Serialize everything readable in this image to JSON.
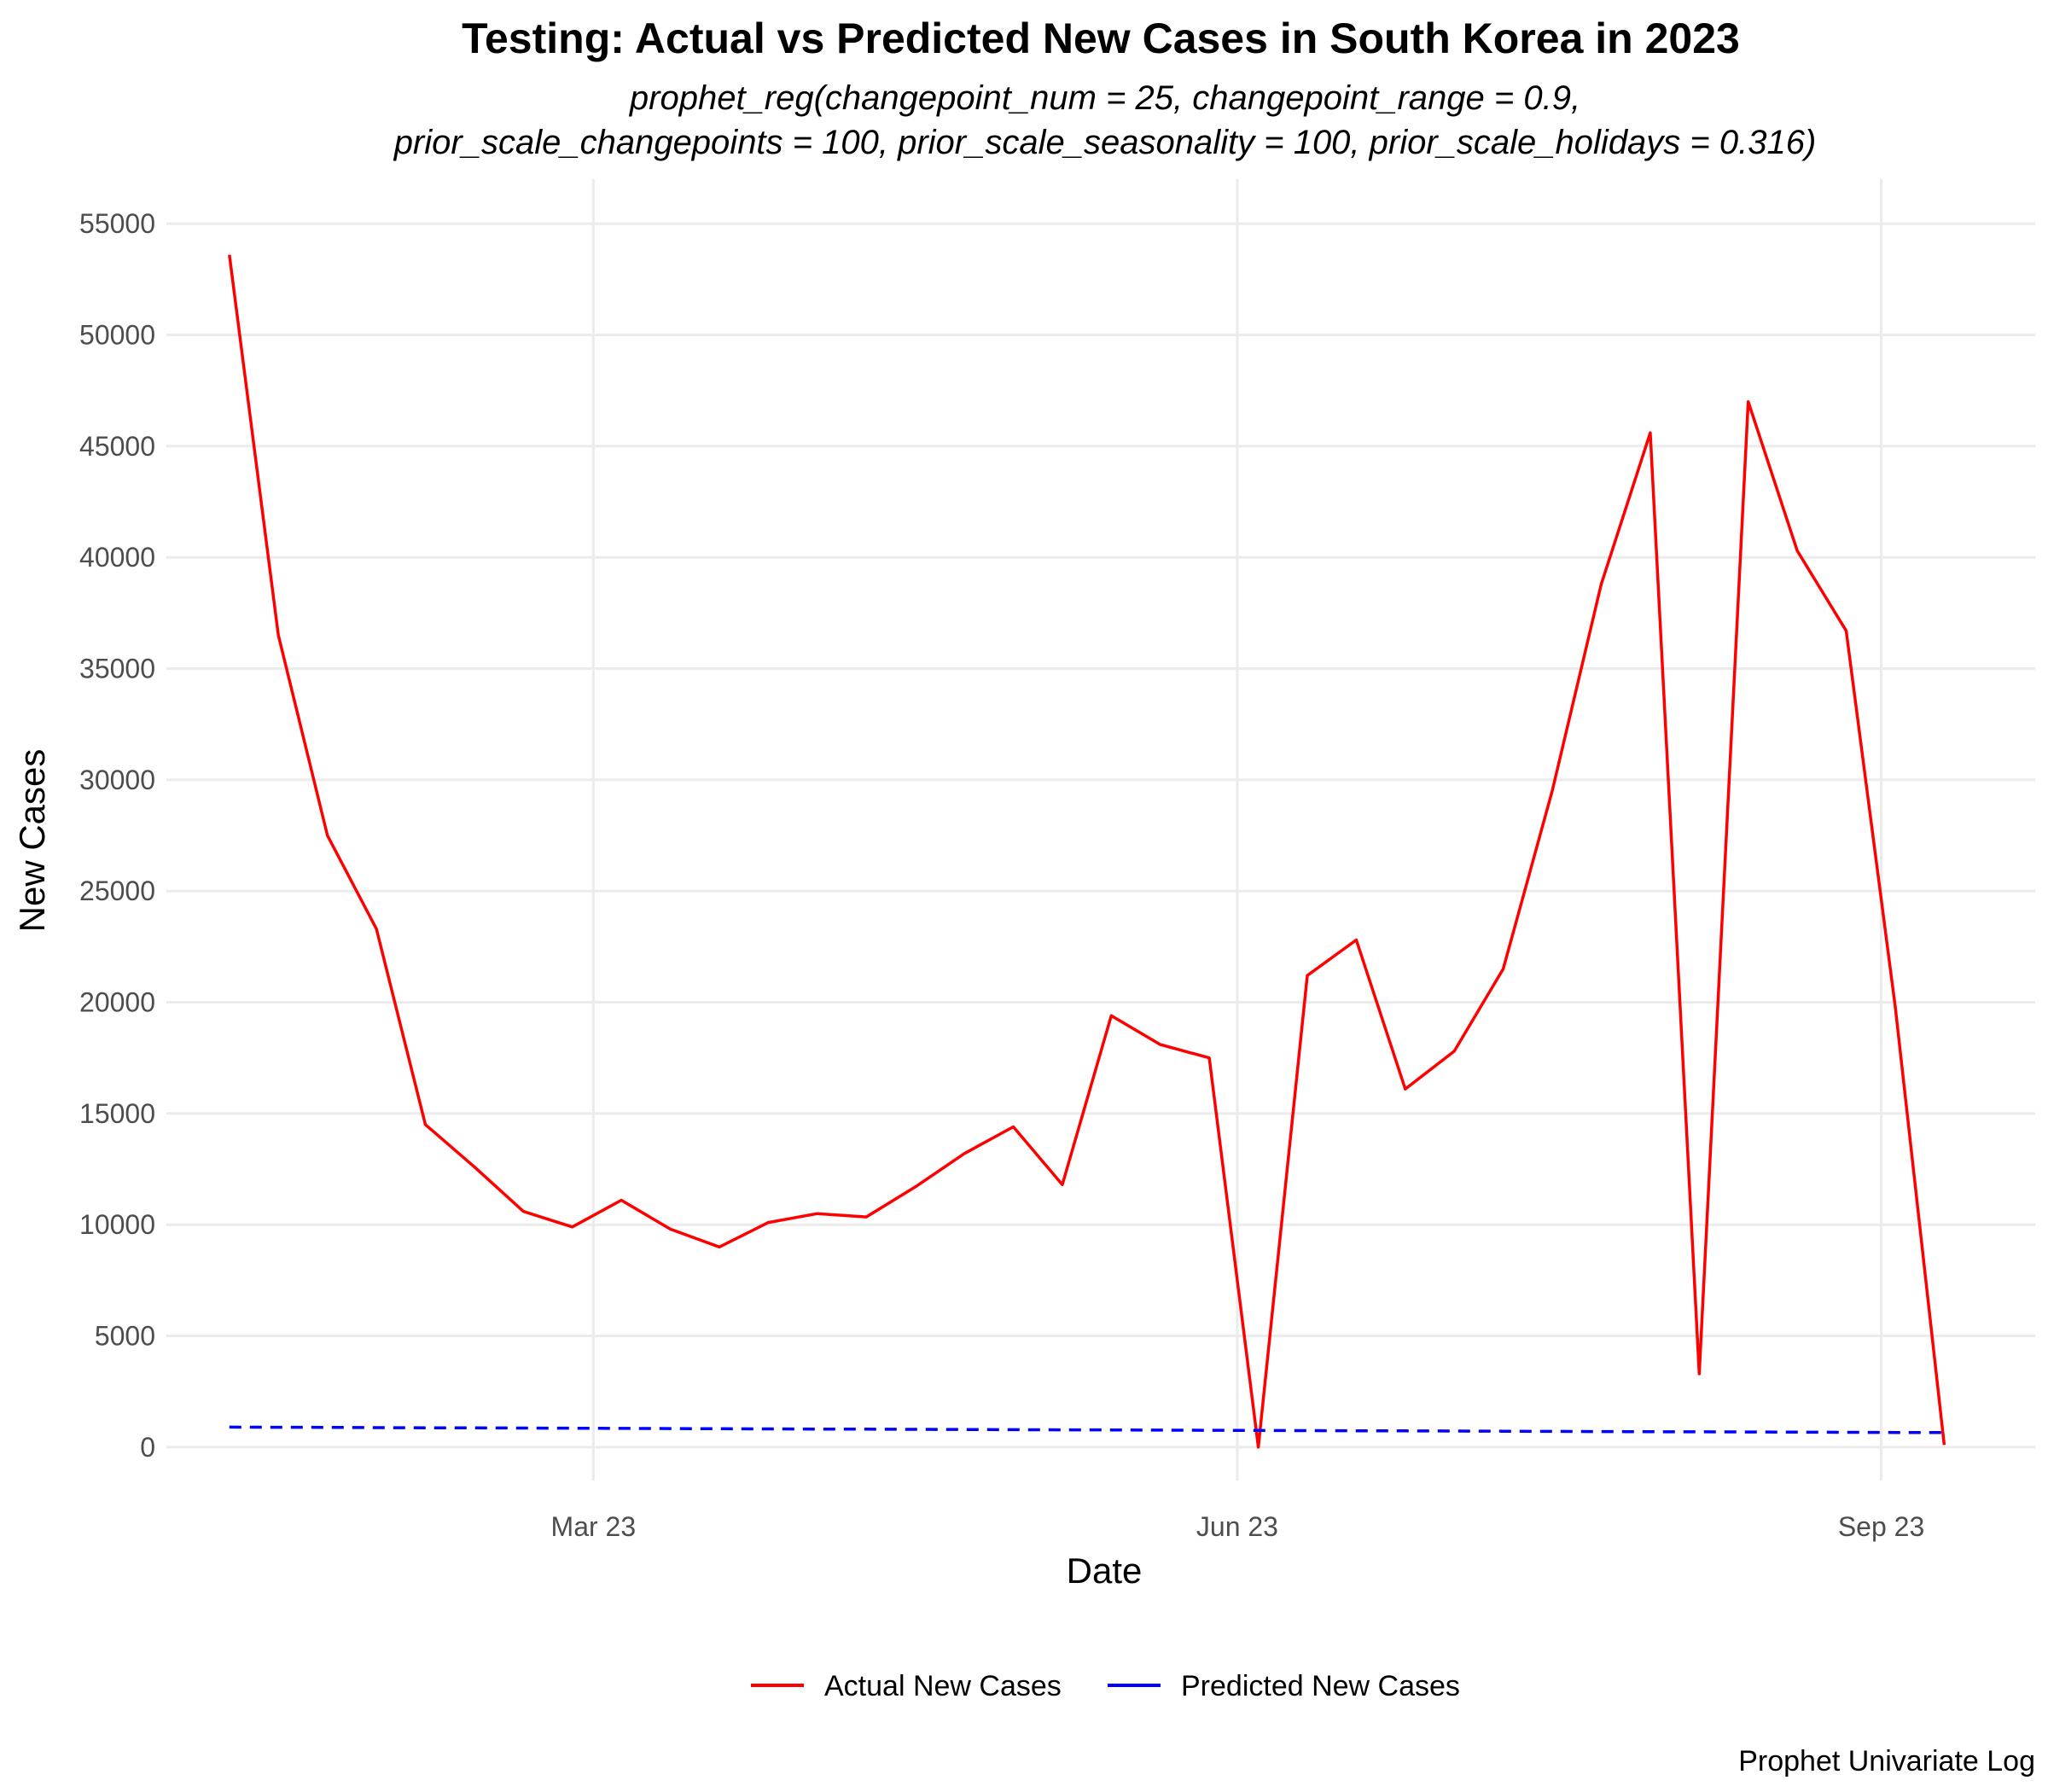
{
  "chart_data": {
    "type": "line",
    "title": "Testing: Actual vs Predicted New Cases in South Korea in 2023",
    "subtitle_lines": [
      "prophet_reg(changepoint_num = 25, changepoint_range = 0.9,",
      "prior_scale_changepoints = 100, prior_scale_seasonality = 100, prior_scale_holidays = 0.316)"
    ],
    "xlabel": "Date",
    "ylabel": "New Cases",
    "caption": "Prophet Univariate Log",
    "x_ticks": [
      {
        "date": "2023-03-01",
        "label": "Mar 23"
      },
      {
        "date": "2023-06-01",
        "label": "Jun 23"
      },
      {
        "date": "2023-09-01",
        "label": "Sep 23"
      }
    ],
    "y_ticks": [
      0,
      5000,
      10000,
      15000,
      20000,
      25000,
      30000,
      35000,
      40000,
      45000,
      50000,
      55000
    ],
    "xlim": [
      "2022-12-30",
      "2023-09-23"
    ],
    "ylim": [
      -1500,
      57000
    ],
    "grid": true,
    "legend_position": "bottom",
    "x": [
      "2023-01-08",
      "2023-01-15",
      "2023-01-22",
      "2023-01-29",
      "2023-02-05",
      "2023-02-12",
      "2023-02-19",
      "2023-02-26",
      "2023-03-05",
      "2023-03-12",
      "2023-03-19",
      "2023-03-26",
      "2023-04-02",
      "2023-04-09",
      "2023-04-16",
      "2023-04-23",
      "2023-04-30",
      "2023-05-07",
      "2023-05-14",
      "2023-05-21",
      "2023-05-28",
      "2023-06-04",
      "2023-06-11",
      "2023-06-18",
      "2023-06-25",
      "2023-07-02",
      "2023-07-09",
      "2023-07-16",
      "2023-07-23",
      "2023-07-30",
      "2023-08-06",
      "2023-08-13",
      "2023-08-20",
      "2023-08-27",
      "2023-09-03",
      "2023-09-10"
    ],
    "series": [
      {
        "name": "Actual New Cases",
        "color": "#ff0000",
        "dash": "solid",
        "values": [
          53600,
          36500,
          27500,
          23300,
          14500,
          12600,
          10600,
          9900,
          11100,
          9800,
          9000,
          10100,
          10500,
          10350,
          11700,
          13200,
          14400,
          11800,
          19400,
          18100,
          17500,
          0,
          21200,
          22800,
          16100,
          17800,
          21500,
          29500,
          38800,
          45600,
          3300,
          47000,
          40300,
          36700,
          19800,
          100
        ]
      },
      {
        "name": "Predicted New Cases",
        "color": "#0000ff",
        "dash": "dashed",
        "values": [
          900,
          895,
          888,
          880,
          872,
          865,
          858,
          850,
          843,
          836,
          829,
          822,
          815,
          808,
          801,
          794,
          787,
          780,
          773,
          766,
          759,
          752,
          745,
          738,
          731,
          724,
          717,
          710,
          703,
          696,
          689,
          682,
          675,
          668,
          661,
          655
        ]
      }
    ]
  }
}
